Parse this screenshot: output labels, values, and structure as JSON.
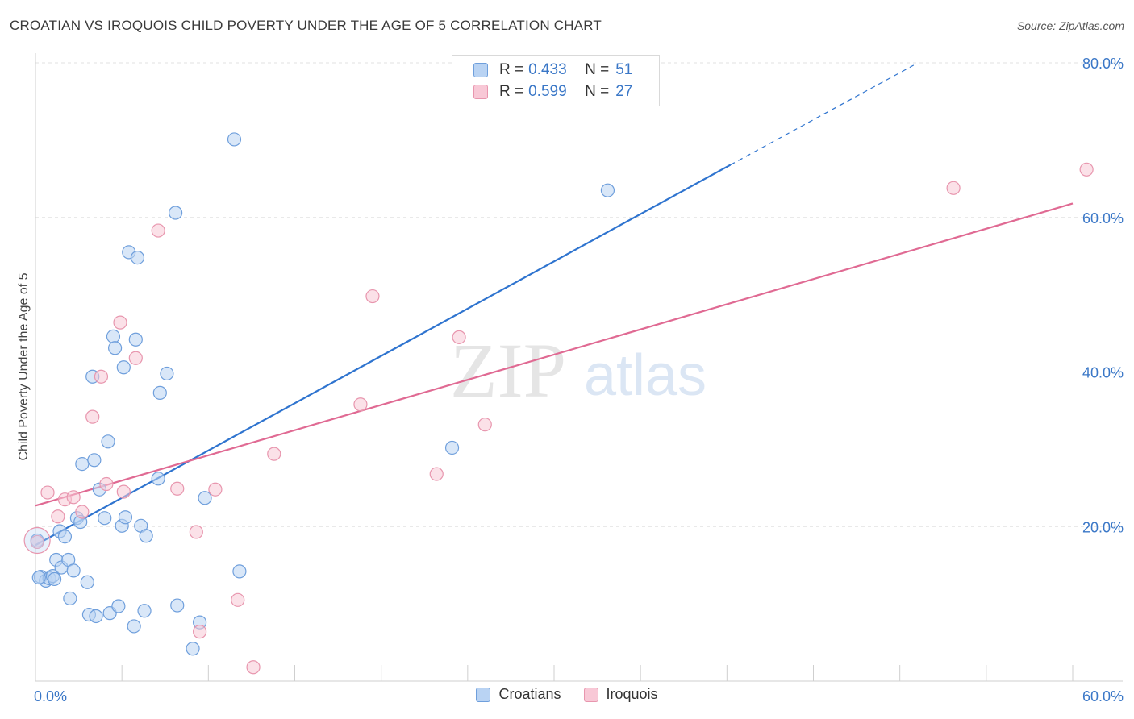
{
  "header": {
    "title": "CROATIAN VS IROQUOIS CHILD POVERTY UNDER THE AGE OF 5 CORRELATION CHART",
    "source": "Source: ZipAtlas.com"
  },
  "legend_top": {
    "rows": [
      {
        "r_label": "R =",
        "r_value": "0.433",
        "n_label": "N =",
        "n_value": "51"
      },
      {
        "r_label": "R =",
        "r_value": "0.599",
        "n_label": "N =",
        "n_value": "27"
      }
    ]
  },
  "legend_bottom": [
    {
      "label": "Croatians"
    },
    {
      "label": "Iroquois"
    }
  ],
  "watermark": {
    "part1": "ZIP",
    "part2": "atlas"
  },
  "colors": {
    "blue_fill": "#b9d3f3",
    "blue_stroke": "#6f9fdc",
    "blue_line": "#2f74cf",
    "pink_fill": "#f8c8d6",
    "pink_stroke": "#e896ae",
    "pink_line": "#e06a93",
    "accent_text": "#3a77c7",
    "grid": "#e2e2e2"
  },
  "chart_data": {
    "type": "scatter",
    "title": "CROATIAN VS IROQUOIS CHILD POVERTY UNDER THE AGE OF 5 CORRELATION CHART",
    "xlabel": "",
    "ylabel": "Child Poverty Under the Age of 5",
    "xlim": [
      0,
      60
    ],
    "ylim": [
      0,
      80
    ],
    "x_tick_labels": [
      "0.0%",
      "60.0%"
    ],
    "y_tick_labels": [
      "20.0%",
      "40.0%",
      "60.0%",
      "80.0%"
    ],
    "y_ticks": [
      20,
      40,
      60,
      80
    ],
    "grid": true,
    "series": [
      {
        "name": "Croatians",
        "r": 0.433,
        "n": 51,
        "trend": {
          "x0": 0,
          "y0": 17.6,
          "x1": 40.2,
          "y1": 66.8,
          "dash_to_x": 50.8,
          "dash_to_y": 79.7
        },
        "points": [
          [
            0.1,
            18.2
          ],
          [
            0.3,
            13.5
          ],
          [
            0.6,
            13.0
          ],
          [
            0.8,
            13.3
          ],
          [
            1.0,
            13.6
          ],
          [
            1.1,
            13.2
          ],
          [
            1.2,
            15.7
          ],
          [
            1.4,
            19.4
          ],
          [
            1.5,
            14.7
          ],
          [
            1.7,
            18.7
          ],
          [
            1.9,
            15.7
          ],
          [
            2.0,
            10.7
          ],
          [
            2.2,
            14.3
          ],
          [
            2.4,
            21.1
          ],
          [
            2.6,
            20.6
          ],
          [
            2.7,
            28.1
          ],
          [
            3.0,
            12.8
          ],
          [
            3.1,
            8.6
          ],
          [
            3.3,
            39.4
          ],
          [
            3.4,
            28.6
          ],
          [
            3.5,
            8.4
          ],
          [
            3.7,
            24.8
          ],
          [
            4.0,
            21.1
          ],
          [
            4.2,
            31.0
          ],
          [
            4.3,
            8.8
          ],
          [
            4.5,
            44.6
          ],
          [
            4.6,
            43.1
          ],
          [
            4.8,
            9.7
          ],
          [
            5.0,
            20.1
          ],
          [
            5.1,
            40.6
          ],
          [
            5.2,
            21.2
          ],
          [
            5.4,
            55.5
          ],
          [
            5.7,
            7.1
          ],
          [
            5.8,
            44.2
          ],
          [
            5.9,
            54.8
          ],
          [
            6.1,
            20.1
          ],
          [
            6.3,
            9.1
          ],
          [
            6.4,
            18.8
          ],
          [
            7.1,
            26.2
          ],
          [
            7.2,
            37.3
          ],
          [
            7.6,
            39.8
          ],
          [
            8.2,
            9.8
          ],
          [
            8.1,
            60.6
          ],
          [
            9.1,
            4.2
          ],
          [
            9.5,
            7.6
          ],
          [
            9.8,
            23.7
          ],
          [
            11.5,
            70.1
          ],
          [
            11.8,
            14.2
          ],
          [
            24.1,
            30.2
          ],
          [
            33.1,
            63.5
          ],
          [
            0.2,
            13.4
          ]
        ]
      },
      {
        "name": "Iroquois",
        "r": 0.599,
        "n": 27,
        "trend": {
          "x0": 0,
          "y0": 22.7,
          "x1": 60,
          "y1": 61.8
        },
        "points": [
          [
            0.1,
            18.0
          ],
          [
            0.7,
            24.4
          ],
          [
            1.3,
            21.3
          ],
          [
            1.7,
            23.5
          ],
          [
            2.2,
            23.8
          ],
          [
            2.7,
            21.9
          ],
          [
            3.3,
            34.2
          ],
          [
            3.8,
            39.4
          ],
          [
            4.1,
            25.5
          ],
          [
            4.9,
            46.4
          ],
          [
            5.1,
            24.5
          ],
          [
            5.8,
            41.8
          ],
          [
            7.1,
            58.3
          ],
          [
            8.2,
            24.9
          ],
          [
            9.3,
            19.3
          ],
          [
            9.5,
            6.4
          ],
          [
            10.4,
            24.8
          ],
          [
            11.7,
            10.5
          ],
          [
            12.6,
            1.8
          ],
          [
            13.8,
            29.4
          ],
          [
            18.8,
            35.8
          ],
          [
            19.5,
            49.8
          ],
          [
            23.2,
            26.8
          ],
          [
            24.5,
            44.5
          ],
          [
            26.0,
            33.2
          ],
          [
            53.1,
            63.8
          ],
          [
            60.8,
            66.2
          ]
        ]
      }
    ]
  }
}
